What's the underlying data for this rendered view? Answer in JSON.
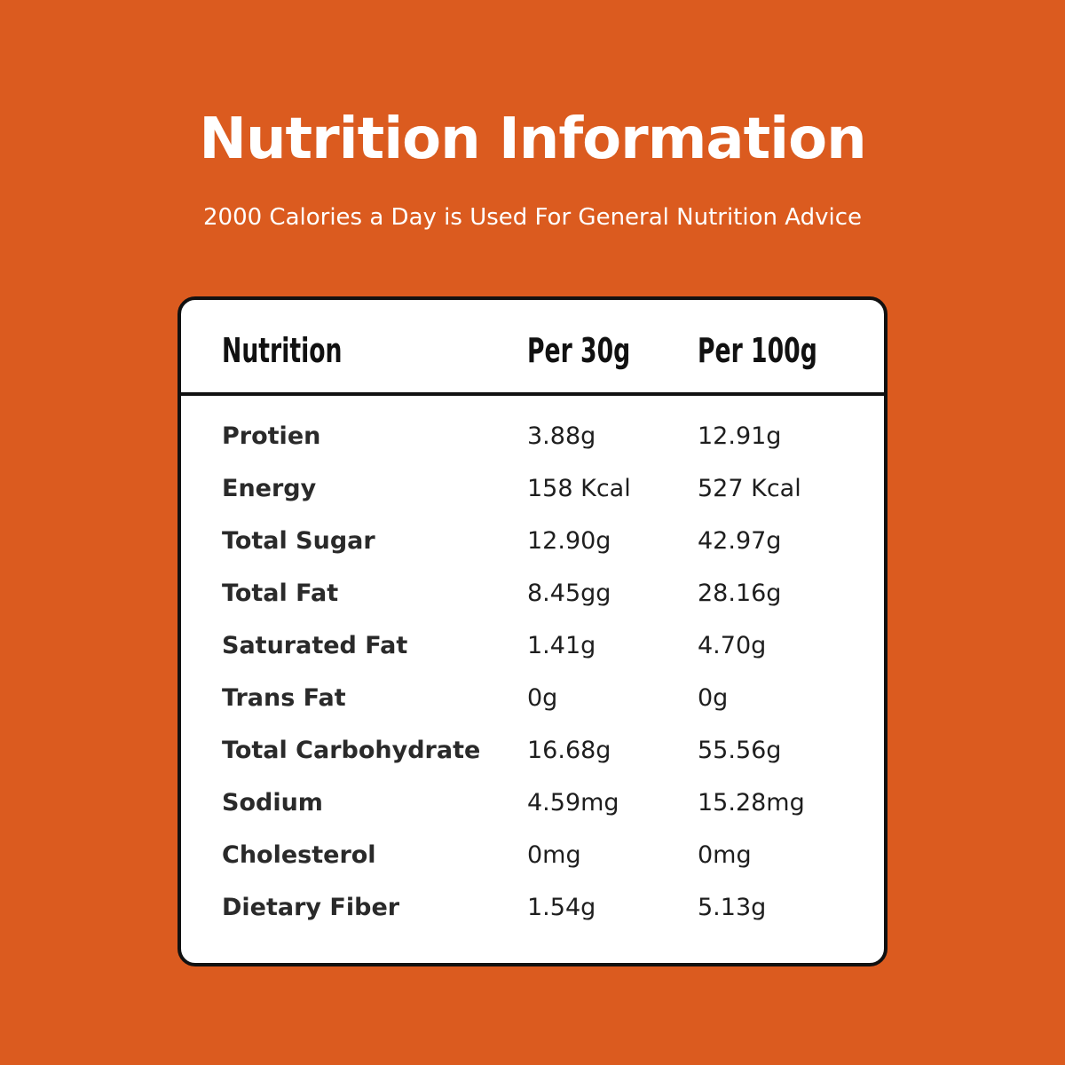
{
  "page": {
    "title": "Nutrition Information",
    "subtitle": "2000 Calories a Day is Used For General Nutrition Advice"
  },
  "colors": {
    "background": "#DB5B1F",
    "card": "#FFFFFF",
    "border": "#111111",
    "text_light": "#FFFFFF",
    "text_dark": "#1E1E1E"
  },
  "table": {
    "headers": [
      "Nutrition",
      "Per 30g",
      "Per 100g"
    ],
    "rows": [
      {
        "name": "Protien",
        "per30": "3.88g",
        "per100": "12.91g"
      },
      {
        "name": "Energy",
        "per30": "158 Kcal",
        "per100": "527 Kcal"
      },
      {
        "name": "Total Sugar",
        "per30": "12.90g",
        "per100": "42.97g"
      },
      {
        "name": "Total Fat",
        "per30": "8.45gg",
        "per100": "28.16g"
      },
      {
        "name": "Saturated Fat",
        "per30": "1.41g",
        "per100": "4.70g"
      },
      {
        "name": "Trans Fat",
        "per30": "0g",
        "per100": "0g"
      },
      {
        "name": "Total Carbohydrate",
        "per30": "16.68g",
        "per100": "55.56g"
      },
      {
        "name": "Sodium",
        "per30": "4.59mg",
        "per100": "15.28mg"
      },
      {
        "name": "Cholesterol",
        "per30": "0mg",
        "per100": "0mg"
      },
      {
        "name": "Dietary Fiber",
        "per30": "1.54g",
        "per100": "5.13g"
      }
    ]
  }
}
